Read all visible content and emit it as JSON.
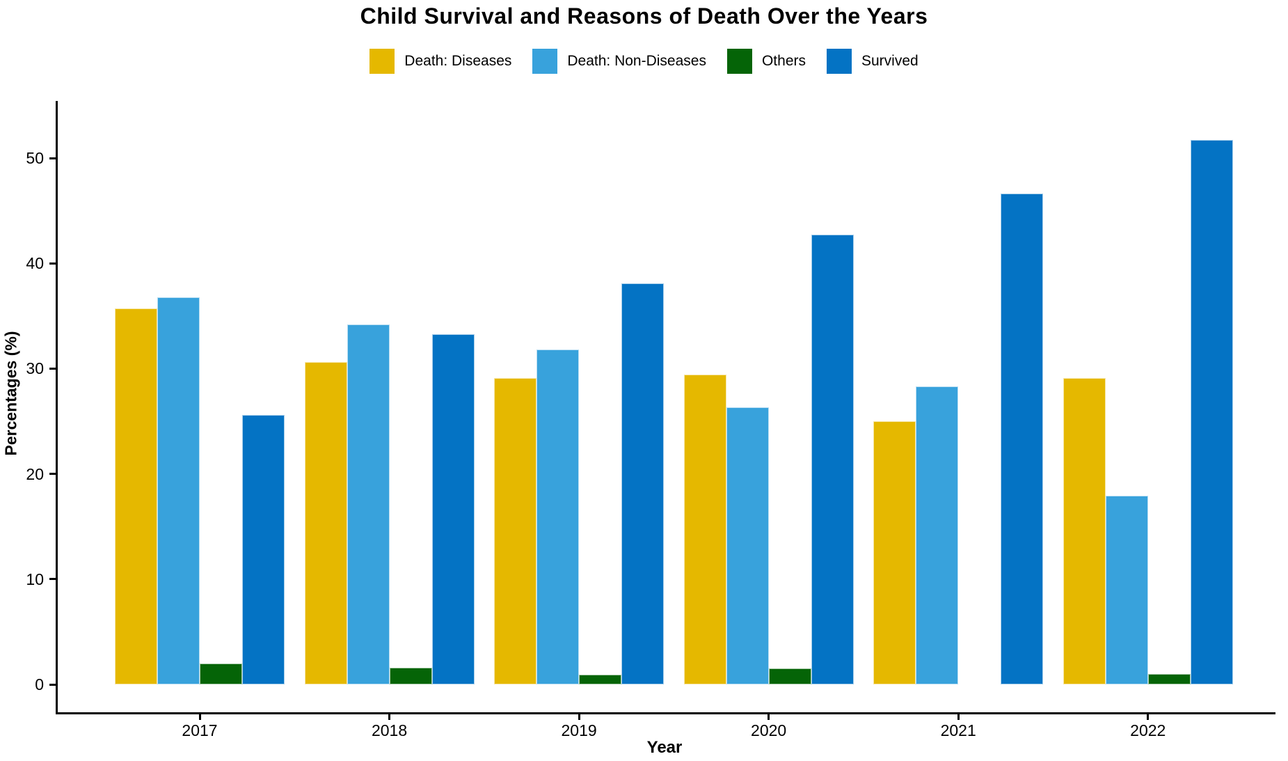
{
  "chart_data": {
    "type": "bar",
    "title": "Child Survival and Reasons of Death Over the Years",
    "xlabel": "Year",
    "ylabel": "Percentages (%)",
    "categories": [
      "2017",
      "2018",
      "2019",
      "2020",
      "2021",
      "2022"
    ],
    "series": [
      {
        "name": "Death: Diseases",
        "color": "#E5B800",
        "values": [
          35.7,
          30.6,
          29.1,
          29.4,
          25.0,
          29.1
        ]
      },
      {
        "name": "Death: Non-Diseases",
        "color": "#38A2DC",
        "values": [
          36.8,
          34.2,
          31.8,
          26.3,
          28.3,
          17.9
        ]
      },
      {
        "name": "Others",
        "color": "#056407",
        "values": [
          2.0,
          1.6,
          0.9,
          1.5,
          0.0,
          1.0
        ]
      },
      {
        "name": "Survived",
        "color": "#0473C4",
        "values": [
          25.6,
          33.3,
          38.1,
          42.7,
          46.6,
          51.7
        ]
      }
    ],
    "yticks": [
      0,
      10,
      20,
      30,
      40,
      50
    ],
    "ylim": [
      0,
      54
    ],
    "grid": false,
    "legend_position": "top",
    "axis_color": "#000000"
  }
}
